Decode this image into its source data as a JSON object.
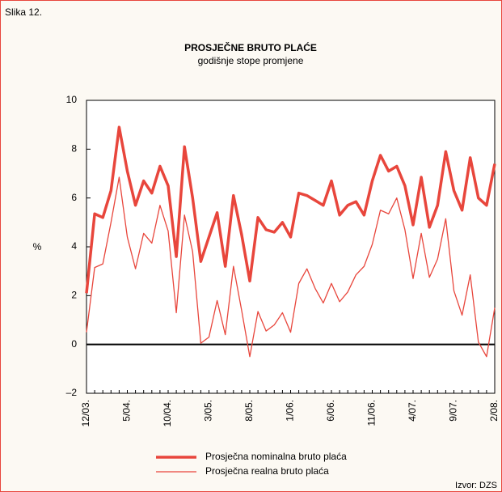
{
  "header": "Slika 12.",
  "source": "Izvor: DZS",
  "chart_data": {
    "type": "line",
    "title": "PROSJEČNE BRUTO PLAĆE",
    "subtitle": "godišnje stope promjene",
    "y_label": "%",
    "categories": [
      "12/03.",
      null,
      null,
      null,
      null,
      "5/04.",
      null,
      null,
      null,
      null,
      "10/04.",
      null,
      null,
      null,
      null,
      "3/05.",
      null,
      null,
      null,
      null,
      "8/05.",
      null,
      null,
      null,
      null,
      "1/06.",
      null,
      null,
      null,
      null,
      "6/06.",
      null,
      null,
      null,
      null,
      "11/06.",
      null,
      null,
      null,
      null,
      "4/07.",
      null,
      null,
      null,
      null,
      "9/07.",
      null,
      null,
      null,
      null,
      "2/08."
    ],
    "series": [
      {
        "name": "Prosječna nominalna bruto plaća",
        "color": "#e8463c",
        "width": "thick",
        "values": [
          2.1,
          5.35,
          5.2,
          6.3,
          8.9,
          7.1,
          5.7,
          6.7,
          6.2,
          7.3,
          6.5,
          3.6,
          8.1,
          6.0,
          3.4,
          4.4,
          5.4,
          3.2,
          6.1,
          4.5,
          2.6,
          5.2,
          4.7,
          4.6,
          5.0,
          4.4,
          6.2,
          6.1,
          5.9,
          5.7,
          6.7,
          5.3,
          5.7,
          5.85,
          5.3,
          6.7,
          7.75,
          7.1,
          7.3,
          6.5,
          4.9,
          6.85,
          4.8,
          5.7,
          7.9,
          6.3,
          5.5,
          7.65,
          6.0,
          5.7,
          7.4
        ]
      },
      {
        "name": "Prosječna realna bruto plaća",
        "color": "#e8463c",
        "width": "thin",
        "values": [
          0.5,
          3.15,
          3.3,
          5.0,
          6.85,
          4.4,
          3.1,
          4.55,
          4.15,
          5.7,
          4.65,
          1.3,
          5.3,
          3.8,
          0.05,
          0.3,
          1.8,
          0.4,
          3.2,
          1.4,
          -0.5,
          1.35,
          0.55,
          0.8,
          1.3,
          0.5,
          2.5,
          3.1,
          2.3,
          1.7,
          2.5,
          1.75,
          2.15,
          2.85,
          3.2,
          4.1,
          5.5,
          5.35,
          6.0,
          4.7,
          2.7,
          4.55,
          2.75,
          3.5,
          5.15,
          2.2,
          1.2,
          2.85,
          0.1,
          -0.5,
          1.5
        ]
      }
    ],
    "ylim": [
      -2,
      10
    ],
    "yticks": [
      {
        "value": -2,
        "label": "–2"
      },
      0,
      2,
      4,
      6,
      8,
      10
    ]
  }
}
